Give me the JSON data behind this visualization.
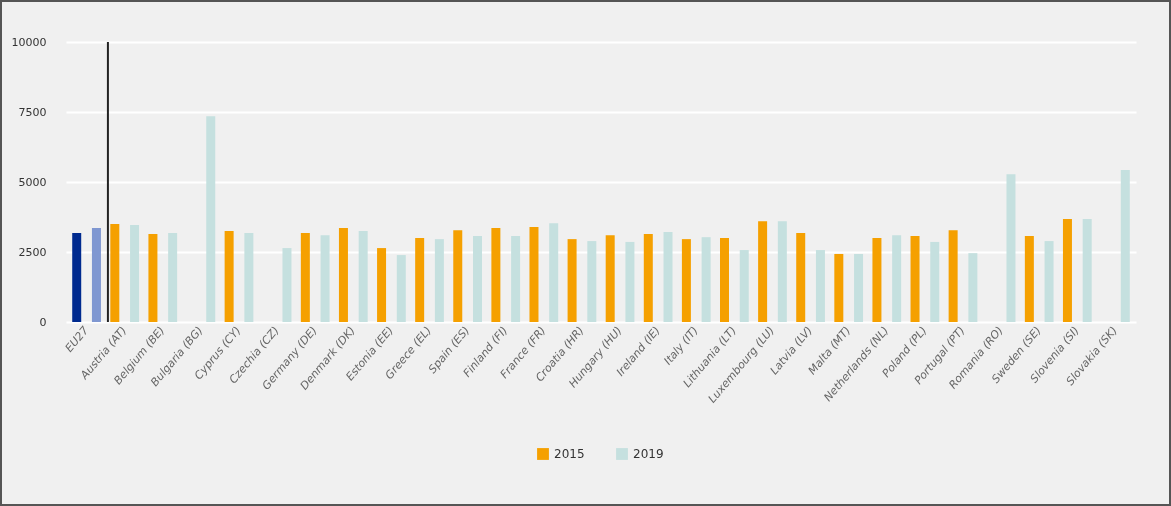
{
  "chart_data": {
    "type": "bar",
    "categories": [
      "EU27",
      "Austria (AT)",
      "Belgium (BE)",
      "Bulgaria (BG)",
      "Cyprus (CY)",
      "Czechia (CZ)",
      "Germany (DE)",
      "Denmark (DK)",
      "Estonia (EE)",
      "Greece (EL)",
      "Spain (ES)",
      "Finland (FI)",
      "France (FR)",
      "Croatia (HR)",
      "Hungary (HU)",
      "Ireland (IE)",
      "Italy (IT)",
      "Lithuania (LT)",
      "Luxembourg (LU)",
      "Latvia (LV)",
      "Malta (MT)",
      "Netherlands (NL)",
      "Poland (PL)",
      "Portugal (PT)",
      "Romania (RO)",
      "Sweden (SE)",
      "Slovenia (SI)",
      "Slovakia (SK)"
    ],
    "series": [
      {
        "name": "2015",
        "color": "#f5a000",
        "colors": [
          "#002a8f",
          "#f5a000",
          "#f5a000",
          null,
          "#f5a000",
          null,
          "#f5a000",
          "#f5a000",
          "#f5a000",
          "#f5a000",
          "#f5a000",
          "#f5a000",
          "#f5a000",
          "#f5a000",
          "#f5a000",
          "#f5a000",
          "#f5a000",
          "#f5a000",
          "#f5a000",
          "#f5a000",
          "#f5a000",
          "#f5a000",
          "#f5a000",
          "#f5a000",
          null,
          "#f5a000",
          "#f5a000",
          null
        ],
        "values": [
          3180,
          3500,
          3140,
          null,
          3250,
          null,
          3180,
          3360,
          2640,
          3000,
          3280,
          3360,
          3390,
          2960,
          3100,
          3140,
          2960,
          3000,
          3600,
          3180,
          2430,
          3000,
          3070,
          3280,
          null,
          3070,
          3680,
          null
        ]
      },
      {
        "name": "2019",
        "color": "#c5e0df",
        "colors": [
          "#7f97d1",
          "#c5e0df",
          "#c5e0df",
          "#c5e0df",
          "#c5e0df",
          "#c5e0df",
          "#c5e0df",
          "#c5e0df",
          "#c5e0df",
          "#c5e0df",
          "#c5e0df",
          "#c5e0df",
          "#c5e0df",
          "#c5e0df",
          "#c5e0df",
          "#c5e0df",
          "#c5e0df",
          "#c5e0df",
          "#c5e0df",
          "#c5e0df",
          "#c5e0df",
          "#c5e0df",
          "#c5e0df",
          "#c5e0df",
          "#c5e0df",
          "#c5e0df",
          "#c5e0df",
          "#c5e0df"
        ],
        "values": [
          3360,
          3460,
          3180,
          7350,
          3180,
          2640,
          3100,
          3250,
          2390,
          2960,
          3070,
          3070,
          3530,
          2890,
          2860,
          3210,
          3030,
          2570,
          3600,
          2570,
          2430,
          3100,
          2860,
          2460,
          5280,
          2890,
          3680,
          5430
        ]
      }
    ],
    "ylim": [
      0,
      10000
    ],
    "yticks": [
      0,
      2500,
      5000,
      7500,
      10000
    ],
    "grid": "y",
    "legend": "bottom",
    "ref_lines": [
      {
        "axis": "x",
        "value": "Austria (AT)",
        "color": "#222222"
      }
    ]
  }
}
